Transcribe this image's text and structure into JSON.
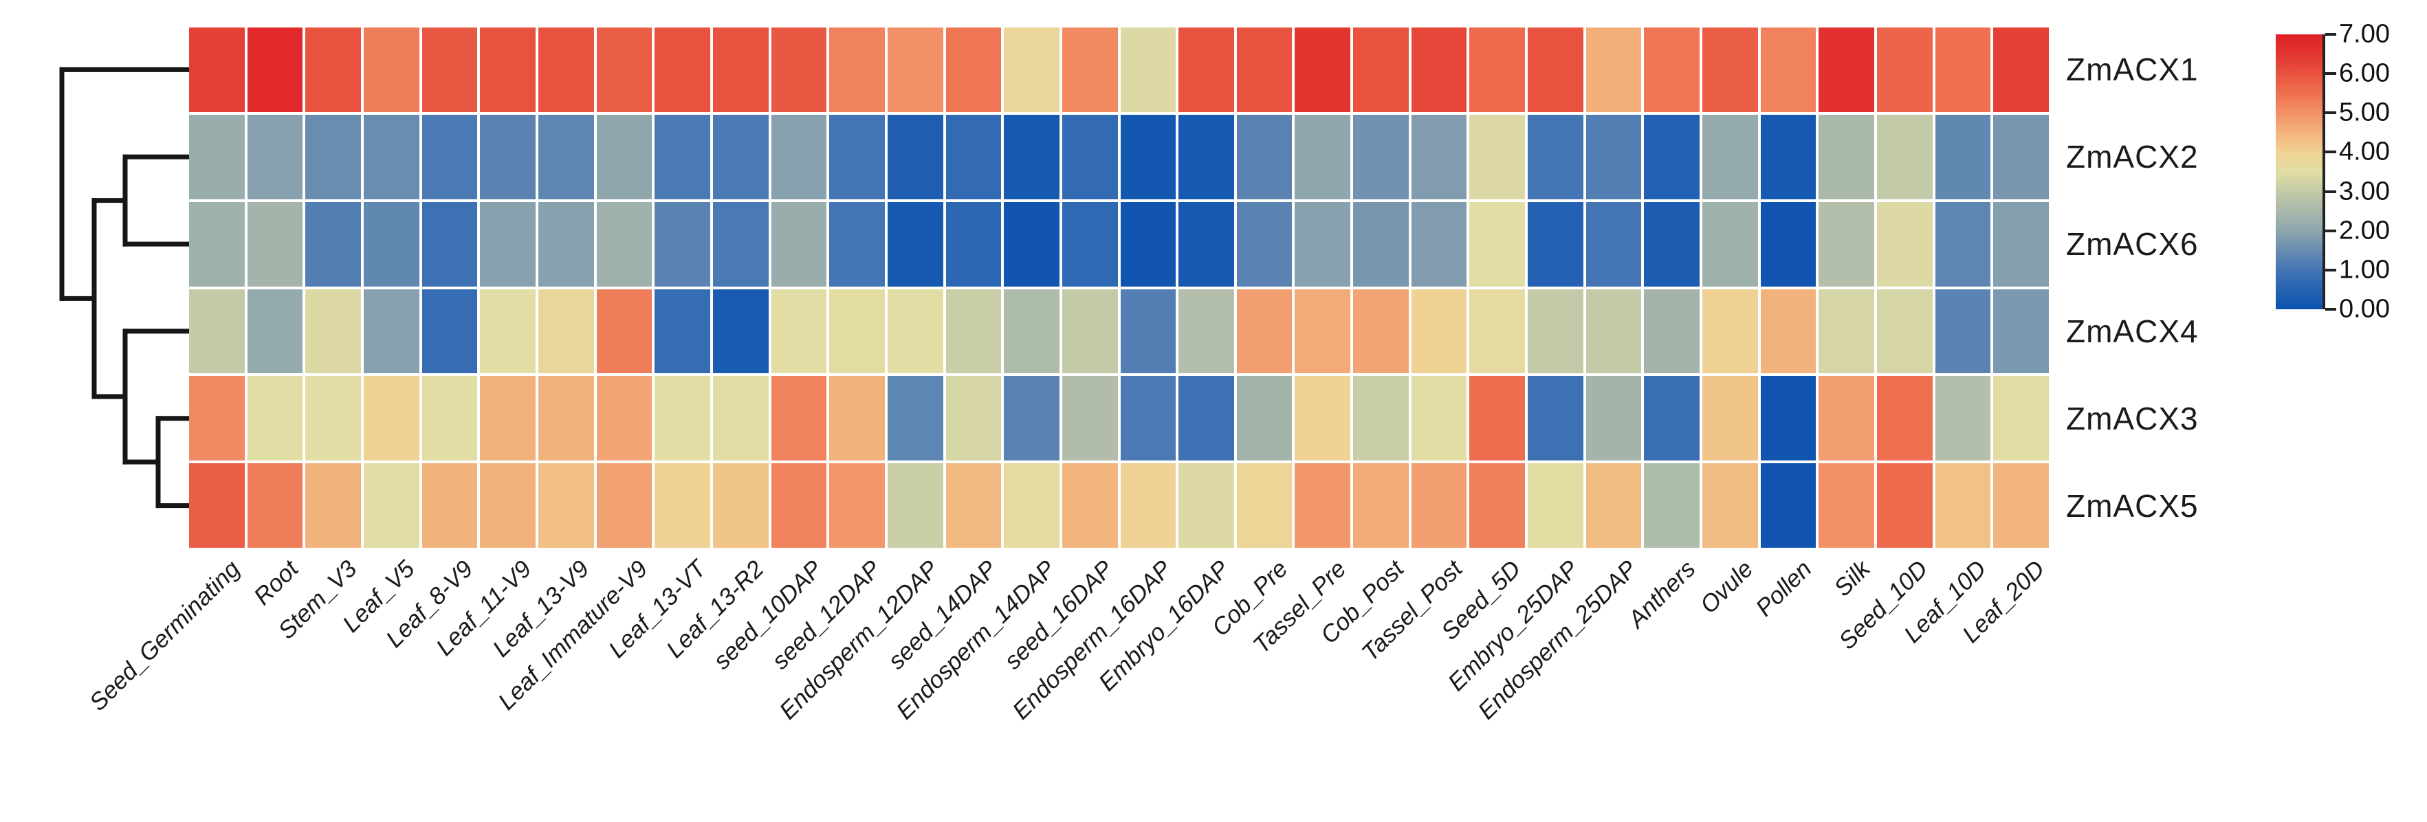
{
  "chart_data": {
    "type": "heatmap",
    "title": "",
    "rows": [
      "ZmACX1",
      "ZmACX2",
      "ZmACX6",
      "ZmACX4",
      "ZmACX3",
      "ZmACX5"
    ],
    "columns": [
      "Seed_Germinating",
      "Root",
      "Stem_V3",
      "Leaf_V5",
      "Leaf_8-V9",
      "Leaf_11-V9",
      "Leaf_13-V9",
      "Leaf_Immature-V9",
      "Leaf_13-VT",
      "Leaf_13-R2",
      "seed_10DAP",
      "seed_12DAP",
      "Endosperm_12DAP",
      "seed_14DAP",
      "Endosperm_14DAP",
      "seed_16DAP",
      "Endosperm_16DAP",
      "Embryo_16DAP",
      "Cob_Pre",
      "Tassel_Pre",
      "Cob_Post",
      "Tassel_Post",
      "Seed_5D",
      "Embryo_25DAP",
      "Endosperm_25DAP",
      "Anthers",
      "Ovule",
      "Pollen",
      "Silk",
      "Seed_10D",
      "Leaf_10D",
      "Leaf_20D"
    ],
    "values": [
      [
        6.3,
        6.8,
        6.0,
        5.3,
        5.9,
        6.0,
        6.0,
        5.8,
        6.0,
        6.0,
        5.9,
        5.2,
        5.0,
        5.4,
        3.8,
        5.1,
        3.4,
        6.0,
        6.0,
        6.5,
        6.0,
        6.2,
        5.6,
        6.0,
        4.55,
        5.4,
        5.8,
        5.2,
        6.6,
        5.7,
        5.5,
        6.3
      ],
      [
        2.2,
        1.9,
        1.5,
        1.5,
        1.1,
        1.3,
        1.35,
        2.0,
        1.1,
        1.1,
        1.9,
        1.0,
        0.35,
        0.7,
        0.2,
        0.7,
        0.15,
        0.2,
        1.3,
        2.0,
        1.6,
        1.8,
        3.4,
        1.0,
        1.2,
        0.4,
        2.1,
        0.2,
        2.5,
        3.0,
        1.4,
        1.7
      ],
      [
        2.3,
        2.4,
        1.2,
        1.4,
        0.9,
        1.9,
        1.9,
        2.3,
        1.3,
        1.1,
        2.2,
        1.0,
        0.2,
        0.6,
        0.1,
        0.65,
        0.1,
        0.2,
        1.3,
        1.9,
        1.7,
        1.8,
        3.5,
        0.45,
        1.0,
        0.3,
        2.3,
        0.1,
        2.7,
        3.4,
        1.35,
        1.85
      ],
      [
        3.0,
        2.1,
        3.4,
        1.9,
        0.75,
        3.5,
        3.8,
        5.3,
        0.75,
        0.25,
        3.5,
        3.55,
        3.5,
        3.1,
        2.6,
        3.0,
        1.2,
        2.7,
        4.8,
        4.6,
        4.7,
        4.0,
        3.6,
        3.0,
        3.0,
        2.4,
        4.0,
        4.5,
        3.3,
        3.3,
        1.3,
        1.75
      ],
      [
        5.1,
        3.5,
        3.5,
        4.0,
        3.5,
        4.5,
        4.5,
        4.7,
        3.5,
        3.5,
        5.2,
        4.5,
        1.35,
        3.3,
        1.3,
        2.65,
        1.1,
        0.9,
        2.4,
        4.0,
        3.1,
        3.5,
        5.55,
        0.9,
        2.4,
        0.85,
        4.2,
        0.1,
        4.8,
        5.5,
        2.7,
        3.5
      ],
      [
        5.8,
        5.3,
        4.5,
        3.5,
        4.5,
        4.5,
        4.3,
        4.75,
        4.0,
        4.2,
        5.2,
        4.9,
        3.1,
        4.4,
        3.6,
        4.45,
        4.0,
        3.4,
        3.9,
        4.9,
        4.6,
        4.8,
        5.25,
        3.55,
        4.35,
        2.6,
        4.35,
        0.1,
        5.0,
        5.6,
        4.25,
        4.45
      ]
    ],
    "value_range": [
      0,
      7
    ],
    "colorbar_ticks": [
      "7.00",
      "6.00",
      "5.00",
      "4.00",
      "3.00",
      "2.00",
      "1.00",
      "0.00"
    ],
    "colormap_stops": [
      [
        0.0,
        "#0b52b0"
      ],
      [
        1.0,
        "#4374b4"
      ],
      [
        2.0,
        "#8fa6ad"
      ],
      [
        3.0,
        "#c3caa8"
      ],
      [
        3.5,
        "#e2dda4"
      ],
      [
        4.0,
        "#f0d294"
      ],
      [
        4.5,
        "#f2b27c"
      ],
      [
        5.0,
        "#f29068"
      ],
      [
        5.5,
        "#ee7050"
      ],
      [
        6.0,
        "#e8523e"
      ],
      [
        6.5,
        "#e23530"
      ],
      [
        7.0,
        "#e01f26"
      ]
    ],
    "dendrogram_topology": "(ZmACX1,((ZmACX2,ZmACX6),(ZmACX4,(ZmACX3,ZmACX5))))",
    "legend_position": "right",
    "grid": false
  }
}
